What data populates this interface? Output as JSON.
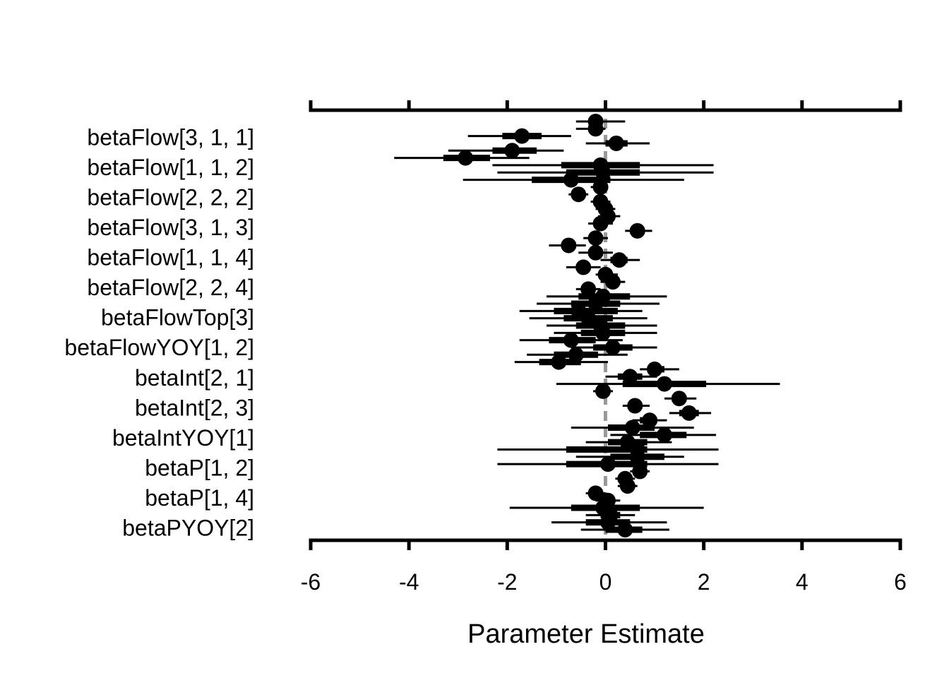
{
  "chart_data": {
    "type": "scatter",
    "subtype": "coefficient-interval-plot",
    "xlabel": "Parameter Estimate",
    "ylabel": "",
    "xlim": [
      -6,
      6
    ],
    "xticks": [
      -6,
      -4,
      -2,
      0,
      2,
      4,
      6
    ],
    "xtick_labels": [
      "-6",
      "-4",
      "-2",
      "0",
      "2",
      "4",
      "6"
    ],
    "reference_line": {
      "x": 0,
      "style": "dashed",
      "color": "#999999"
    },
    "y_labels": [
      "betaFlow[3, 1, 1]",
      "betaFlow[1, 1, 2]",
      "betaFlow[2, 2, 2]",
      "betaFlow[3, 1, 3]",
      "betaFlow[1, 1, 4]",
      "betaFlow[2, 2, 4]",
      "betaFlowTop[3]",
      "betaFlowYOY[1, 2]",
      "betaInt[2, 1]",
      "betaInt[2, 3]",
      "betaIntYOY[1]",
      "betaP[1, 2]",
      "betaP[1, 4]",
      "betaPYOY[2]"
    ],
    "point_color": "#000000",
    "estimates": [
      {
        "est": -0.2,
        "lo95": -0.6,
        "hi95": 0.4,
        "lo50": -0.35,
        "hi50": -0.05
      },
      {
        "est": -0.2,
        "lo95": -0.6,
        "hi95": 0.0,
        "lo50": -0.35,
        "hi50": -0.1
      },
      {
        "est": -1.7,
        "lo95": -2.8,
        "hi95": -0.7,
        "lo50": -2.1,
        "hi50": -1.3
      },
      {
        "est": 0.22,
        "lo95": -0.4,
        "hi95": 0.9,
        "lo50": 0.0,
        "hi50": 0.45
      },
      {
        "est": -1.9,
        "lo95": -3.2,
        "hi95": -0.85,
        "lo50": -2.3,
        "hi50": -1.4
      },
      {
        "est": -2.85,
        "lo95": -4.3,
        "hi95": -1.55,
        "lo50": -3.3,
        "hi50": -2.35
      },
      {
        "est": -0.1,
        "lo95": -2.3,
        "hi95": 2.2,
        "lo50": -0.9,
        "hi50": 0.7
      },
      {
        "est": -0.05,
        "lo95": -2.2,
        "hi95": 2.2,
        "lo50": -0.8,
        "hi50": 0.7
      },
      {
        "est": -0.7,
        "lo95": -2.9,
        "hi95": 1.6,
        "lo50": -1.5,
        "hi50": 0.1
      },
      {
        "est": -0.1,
        "lo95": -0.3,
        "hi95": 0.05,
        "lo50": -0.2,
        "hi50": 0.0
      },
      {
        "est": -0.55,
        "lo95": -0.75,
        "hi95": -0.35,
        "lo50": -0.65,
        "hi50": -0.45
      },
      {
        "est": -0.1,
        "lo95": -0.3,
        "hi95": 0.1,
        "lo50": -0.2,
        "hi50": 0.0
      },
      {
        "est": 0.0,
        "lo95": -0.2,
        "hi95": 0.2,
        "lo50": -0.1,
        "hi50": 0.1
      },
      {
        "est": 0.05,
        "lo95": -0.15,
        "hi95": 0.3,
        "lo50": -0.05,
        "hi50": 0.15
      },
      {
        "est": -0.1,
        "lo95": -0.35,
        "hi95": 0.15,
        "lo50": -0.2,
        "hi50": 0.0
      },
      {
        "est": 0.65,
        "lo95": 0.4,
        "hi95": 0.95,
        "lo50": 0.5,
        "hi50": 0.8
      },
      {
        "est": -0.2,
        "lo95": -0.45,
        "hi95": 0.05,
        "lo50": -0.3,
        "hi50": -0.1
      },
      {
        "est": -0.75,
        "lo95": -1.15,
        "hi95": -0.4,
        "lo50": -0.9,
        "hi50": -0.6
      },
      {
        "est": -0.2,
        "lo95": -0.55,
        "hi95": 0.15,
        "lo50": -0.35,
        "hi50": -0.05
      },
      {
        "est": 0.28,
        "lo95": -0.1,
        "hi95": 0.7,
        "lo50": 0.1,
        "hi50": 0.45
      },
      {
        "est": -0.45,
        "lo95": -0.8,
        "hi95": -0.1,
        "lo50": -0.6,
        "hi50": -0.3
      },
      {
        "est": 0.0,
        "lo95": -0.2,
        "hi95": 0.25,
        "lo50": -0.1,
        "hi50": 0.12
      },
      {
        "est": 0.15,
        "lo95": -0.1,
        "hi95": 0.4,
        "lo50": 0.05,
        "hi50": 0.25
      },
      {
        "est": -0.35,
        "lo95": -0.6,
        "hi95": -0.1,
        "lo50": -0.45,
        "hi50": -0.25
      },
      {
        "est": -0.05,
        "lo95": -1.2,
        "hi95": 1.25,
        "lo50": -0.55,
        "hi50": 0.5
      },
      {
        "est": -0.2,
        "lo95": -1.4,
        "hi95": 1.1,
        "lo50": -0.7,
        "hi50": 0.3
      },
      {
        "est": -0.55,
        "lo95": -1.75,
        "hi95": 0.75,
        "lo50": -1.05,
        "hi50": 0.25
      },
      {
        "est": -0.35,
        "lo95": -1.55,
        "hi95": 0.85,
        "lo50": -0.85,
        "hi50": 0.15
      },
      {
        "est": -0.1,
        "lo95": -1.2,
        "hi95": 1.05,
        "lo50": -0.6,
        "hi50": 0.4
      },
      {
        "est": -0.05,
        "lo95": -1.05,
        "hi95": 1.05,
        "lo50": -0.5,
        "hi50": 0.4
      },
      {
        "est": -0.7,
        "lo95": -1.75,
        "hi95": 0.35,
        "lo50": -1.15,
        "hi50": -0.2
      },
      {
        "est": 0.15,
        "lo95": -0.7,
        "hi95": 1.05,
        "lo50": -0.25,
        "hi50": 0.55
      },
      {
        "est": -0.6,
        "lo95": -1.6,
        "hi95": 0.45,
        "lo50": -1.05,
        "hi50": -0.15
      },
      {
        "est": -0.95,
        "lo95": -1.85,
        "hi95": 0.05,
        "lo50": -1.35,
        "hi50": -0.5
      },
      {
        "est": 1.0,
        "lo95": 0.7,
        "hi95": 1.5,
        "lo50": 0.85,
        "hi50": 1.2
      },
      {
        "est": 0.5,
        "lo95": 0.0,
        "hi95": 1.05,
        "lo50": 0.25,
        "hi50": 0.75
      },
      {
        "est": 1.2,
        "lo95": -1.0,
        "hi95": 3.55,
        "lo50": 0.35,
        "hi50": 2.05
      },
      {
        "est": -0.05,
        "lo95": -0.25,
        "hi95": 0.15,
        "lo50": -0.15,
        "hi50": 0.05
      },
      {
        "est": 1.5,
        "lo95": 1.2,
        "hi95": 1.85,
        "lo50": 1.35,
        "hi50": 1.65
      },
      {
        "est": 0.6,
        "lo95": 0.35,
        "hi95": 0.9,
        "lo50": 0.45,
        "hi50": 0.75
      },
      {
        "est": 1.7,
        "lo95": 1.3,
        "hi95": 2.15,
        "lo50": 1.5,
        "hi50": 1.9
      },
      {
        "est": 0.9,
        "lo95": 0.55,
        "hi95": 1.25,
        "lo50": 0.7,
        "hi50": 1.05
      },
      {
        "est": 0.55,
        "lo95": -0.7,
        "hi95": 1.8,
        "lo50": 0.05,
        "hi50": 1.0
      },
      {
        "est": 1.2,
        "lo95": 0.1,
        "hi95": 2.25,
        "lo50": 0.7,
        "hi50": 1.65
      },
      {
        "est": 0.45,
        "lo95": -0.4,
        "hi95": 1.35,
        "lo50": 0.05,
        "hi50": 0.85
      },
      {
        "est": 0.65,
        "lo95": -2.2,
        "hi95": 2.3,
        "lo50": -0.8,
        "hi50": 0.85
      },
      {
        "est": 0.65,
        "lo95": -0.6,
        "hi95": 1.6,
        "lo50": 0.1,
        "hi50": 1.2
      },
      {
        "est": 0.05,
        "lo95": -2.2,
        "hi95": 2.3,
        "lo50": -0.8,
        "hi50": 0.85
      },
      {
        "est": 0.7,
        "lo95": 0.5,
        "hi95": 0.9,
        "lo50": 0.6,
        "hi50": 0.8
      },
      {
        "est": 0.4,
        "lo95": 0.2,
        "hi95": 0.6,
        "lo50": 0.3,
        "hi50": 0.5
      },
      {
        "est": 0.45,
        "lo95": 0.25,
        "hi95": 0.65,
        "lo50": 0.35,
        "hi50": 0.55
      },
      {
        "est": -0.2,
        "lo95": -0.4,
        "hi95": 0.0,
        "lo50": -0.3,
        "hi50": -0.1
      },
      {
        "est": 0.05,
        "lo95": -0.2,
        "hi95": 0.3,
        "lo50": -0.1,
        "hi50": 0.15
      },
      {
        "est": -0.05,
        "lo95": -1.95,
        "hi95": 2.0,
        "lo50": -0.7,
        "hi50": 0.7
      },
      {
        "est": 0.1,
        "lo95": -0.4,
        "hi95": 0.6,
        "lo50": -0.1,
        "hi50": 0.3
      },
      {
        "est": 0.05,
        "lo95": -1.1,
        "hi95": 1.25,
        "lo50": -0.4,
        "hi50": 0.5
      },
      {
        "est": 0.4,
        "lo95": -0.5,
        "hi95": 1.3,
        "lo50": 0.0,
        "hi50": 0.75
      }
    ]
  }
}
